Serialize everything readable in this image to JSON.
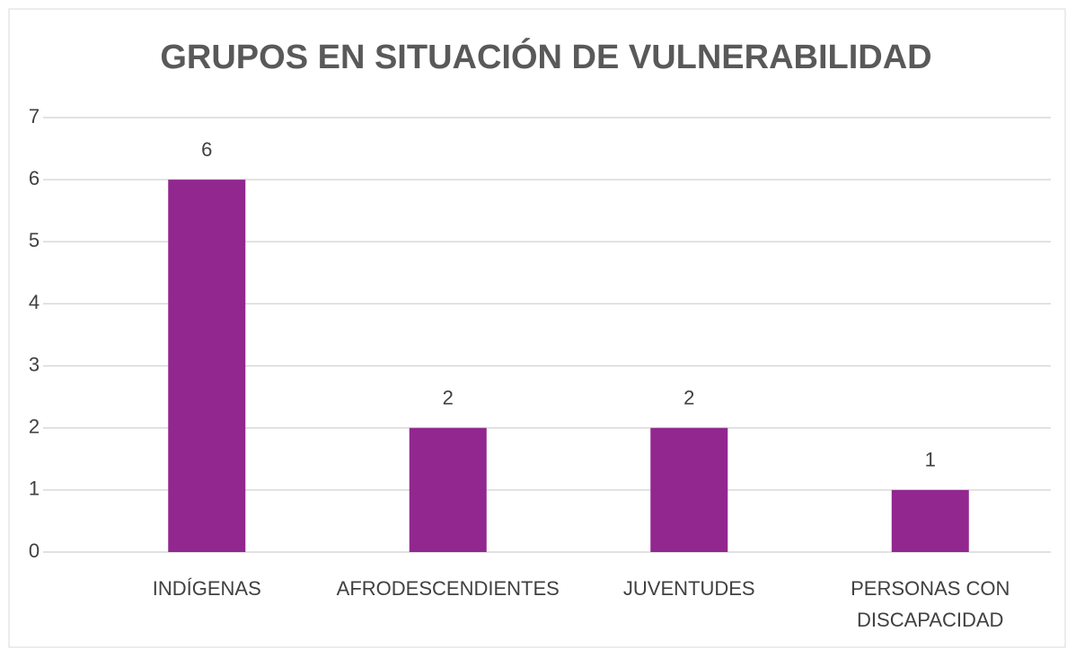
{
  "chart_data": {
    "type": "bar",
    "title": "GRUPOS EN SITUACIÓN DE VULNERABILIDAD",
    "categories": [
      "INDÍGENAS",
      "AFRODESCENDIENTES",
      "JUVENTUDES",
      "PERSONAS CON DISCAPACIDAD"
    ],
    "values": [
      6,
      2,
      2,
      1
    ],
    "color": "#92278f",
    "ylim": [
      0,
      7
    ],
    "yticks": [
      0,
      1,
      2,
      3,
      4,
      5,
      6,
      7
    ],
    "grid": true
  }
}
